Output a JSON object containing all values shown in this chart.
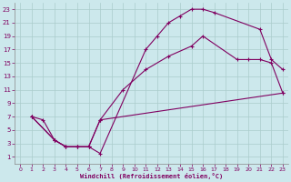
{
  "title": "",
  "xlabel": "Windchill (Refroidissement éolien,°C)",
  "xlim": [
    -0.5,
    23.5
  ],
  "ylim": [
    0,
    24
  ],
  "xticks": [
    0,
    1,
    2,
    3,
    4,
    5,
    6,
    7,
    8,
    9,
    10,
    11,
    12,
    13,
    14,
    15,
    16,
    17,
    18,
    19,
    20,
    21,
    22,
    23
  ],
  "yticks": [
    1,
    3,
    5,
    7,
    9,
    11,
    13,
    15,
    17,
    19,
    21,
    23
  ],
  "bg_color": "#cce8ec",
  "line_color": "#800060",
  "grid_color": "#aacccc",
  "curve1_x": [
    1,
    2,
    3,
    4,
    5,
    6,
    7,
    11,
    12,
    13,
    14,
    15,
    16,
    17,
    21,
    22,
    23
  ],
  "curve1_y": [
    7,
    6.5,
    3.5,
    2.5,
    2.5,
    2.5,
    1.5,
    17,
    19,
    21,
    22,
    23,
    23,
    22.5,
    20,
    15.5,
    14
  ],
  "curve2_x": [
    1,
    3,
    4,
    5,
    6,
    7,
    9,
    11,
    13,
    15,
    16,
    19,
    20,
    21,
    22,
    23
  ],
  "curve2_y": [
    7,
    3.5,
    2.5,
    2.5,
    2.5,
    6.5,
    11,
    14,
    16,
    17.5,
    19,
    15.5,
    15.5,
    15.5,
    15,
    10.5
  ],
  "curve3_x": [
    1,
    3,
    4,
    5,
    6,
    7,
    23
  ],
  "curve3_y": [
    7,
    3.5,
    2.5,
    2.5,
    2.5,
    6.5,
    10.5
  ]
}
